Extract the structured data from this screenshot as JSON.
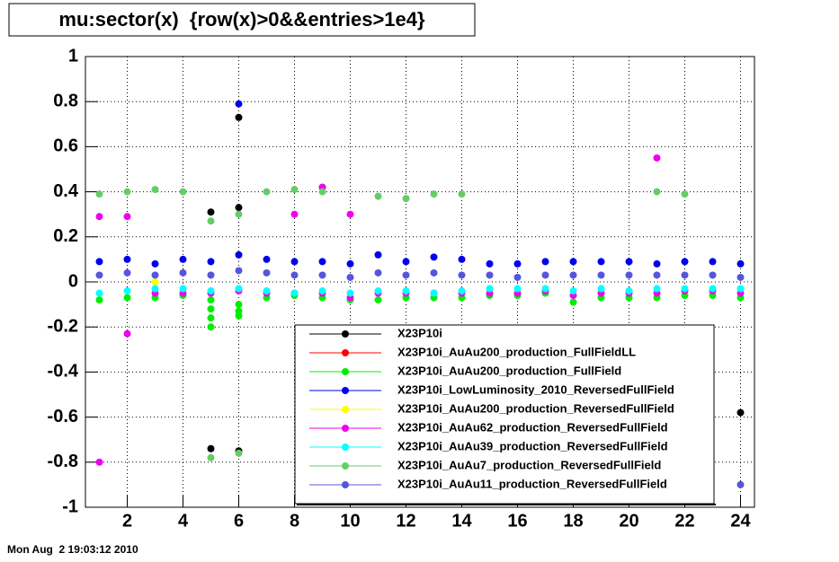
{
  "chart_data": {
    "type": "scatter",
    "title": "mu:sector(x)  {row(x)>0&&entries>1e4}",
    "date": "Mon Aug  2 19:03:12 2010",
    "xlim": [
      0.5,
      24.5
    ],
    "xticks": [
      2,
      4,
      6,
      8,
      10,
      12,
      14,
      16,
      18,
      20,
      22,
      24
    ],
    "ylim": [
      -1,
      1
    ],
    "yticks": [
      -1,
      -0.8,
      -0.6,
      -0.4,
      -0.2,
      0,
      0.2,
      0.4,
      0.6,
      0.8,
      1
    ],
    "grid": true,
    "legend": "bottom-right",
    "series": [
      {
        "name": "X23P10i",
        "color": "#000000",
        "x": [
          5,
          5,
          6,
          6,
          6,
          24
        ],
        "y": [
          0.31,
          -0.74,
          0.73,
          0.33,
          -0.75,
          -0.58
        ]
      },
      {
        "name": "X23P10i_AuAu200_production_FullFieldLL",
        "color": "#ff0000",
        "x": [
          9
        ],
        "y": [
          0.42
        ]
      },
      {
        "name": "X23P10i_AuAu200_production_FullField",
        "color": "#00ee00",
        "x": [
          1,
          2,
          3,
          4,
          5,
          5,
          5,
          5,
          6,
          6,
          6,
          7,
          8,
          9,
          10,
          11,
          12,
          13,
          14,
          15,
          16,
          17,
          18,
          19,
          20,
          21,
          22,
          23,
          24
        ],
        "y": [
          -0.08,
          -0.07,
          -0.07,
          -0.06,
          -0.08,
          -0.12,
          -0.16,
          -0.2,
          -0.1,
          -0.13,
          -0.15,
          -0.07,
          -0.06,
          -0.07,
          -0.08,
          -0.08,
          -0.07,
          -0.07,
          -0.07,
          -0.06,
          -0.06,
          -0.05,
          -0.09,
          -0.07,
          -0.07,
          -0.07,
          -0.06,
          -0.06,
          -0.07
        ]
      },
      {
        "name": "X23P10i_LowLuminosity_2010_ReversedFullField",
        "color": "#0000ee",
        "x": [
          1,
          2,
          3,
          4,
          5,
          6,
          6,
          7,
          8,
          9,
          10,
          11,
          12,
          13,
          14,
          15,
          16,
          17,
          18,
          19,
          20,
          21,
          22,
          23,
          24
        ],
        "y": [
          0.09,
          0.1,
          0.08,
          0.1,
          0.09,
          0.12,
          0.79,
          0.1,
          0.09,
          0.09,
          0.08,
          0.12,
          0.09,
          0.11,
          0.1,
          0.08,
          0.08,
          0.09,
          0.09,
          0.09,
          0.09,
          0.08,
          0.09,
          0.09,
          0.08
        ]
      },
      {
        "name": "X23P10i_AuAu200_production_ReversedFullField",
        "color": "#ffff00",
        "x": [
          3
        ],
        "y": [
          0
        ]
      },
      {
        "name": "X23P10i_AuAu62_production_ReversedFullField",
        "color": "#ee00ee",
        "x": [
          1,
          1,
          2,
          2,
          3,
          4,
          5,
          6,
          7,
          8,
          8,
          9,
          9,
          10,
          10,
          11,
          12,
          13,
          14,
          15,
          16,
          17,
          18,
          19,
          20,
          21,
          21,
          22,
          23,
          24
        ],
        "y": [
          0.29,
          -0.8,
          0.29,
          -0.23,
          -0.05,
          -0.05,
          -0.05,
          -0.04,
          -0.05,
          0.3,
          -0.05,
          0.42,
          -0.05,
          0.3,
          -0.07,
          -0.05,
          -0.05,
          -0.05,
          -0.05,
          -0.05,
          -0.05,
          -0.04,
          -0.06,
          -0.05,
          -0.05,
          0.55,
          -0.05,
          -0.04,
          -0.04,
          -0.05
        ]
      },
      {
        "name": "X23P10i_AuAu39_production_ReversedFullField",
        "color": "#00ffff",
        "x": [
          1,
          2,
          3,
          4,
          5,
          6,
          7,
          8,
          9,
          10,
          11,
          12,
          13,
          14,
          15,
          16,
          17,
          18,
          19,
          20,
          21,
          22,
          23,
          24
        ],
        "y": [
          -0.05,
          -0.04,
          -0.03,
          -0.03,
          -0.04,
          -0.03,
          -0.04,
          -0.05,
          -0.04,
          -0.05,
          -0.04,
          -0.04,
          -0.05,
          -0.04,
          -0.03,
          -0.03,
          -0.03,
          -0.04,
          -0.03,
          -0.04,
          -0.03,
          -0.03,
          -0.03,
          -0.03
        ]
      },
      {
        "name": "X23P10i_AuAu7_production_ReversedFullField",
        "color": "#66cc66",
        "x": [
          1,
          2,
          3,
          4,
          5,
          5,
          6,
          6,
          7,
          8,
          9,
          11,
          12,
          13,
          14,
          21,
          22
        ],
        "y": [
          0.39,
          0.4,
          0.41,
          0.4,
          0.27,
          -0.78,
          0.3,
          -0.76,
          0.4,
          0.41,
          0.4,
          0.38,
          0.37,
          0.39,
          0.39,
          0.4,
          0.39
        ]
      },
      {
        "name": "X23P10i_AuAu11_production_ReversedFullField",
        "color": "#5555dd",
        "x": [
          1,
          2,
          3,
          4,
          5,
          6,
          7,
          8,
          9,
          10,
          11,
          12,
          13,
          14,
          15,
          16,
          17,
          18,
          19,
          20,
          21,
          22,
          23,
          24,
          24
        ],
        "y": [
          0.03,
          0.04,
          0.03,
          0.04,
          0.03,
          0.05,
          0.04,
          0.03,
          0.03,
          0.02,
          0.04,
          0.03,
          0.04,
          0.03,
          0.03,
          0.02,
          0.03,
          0.03,
          0.03,
          0.03,
          0.03,
          0.03,
          0.03,
          0.02,
          -0.9
        ]
      }
    ]
  }
}
